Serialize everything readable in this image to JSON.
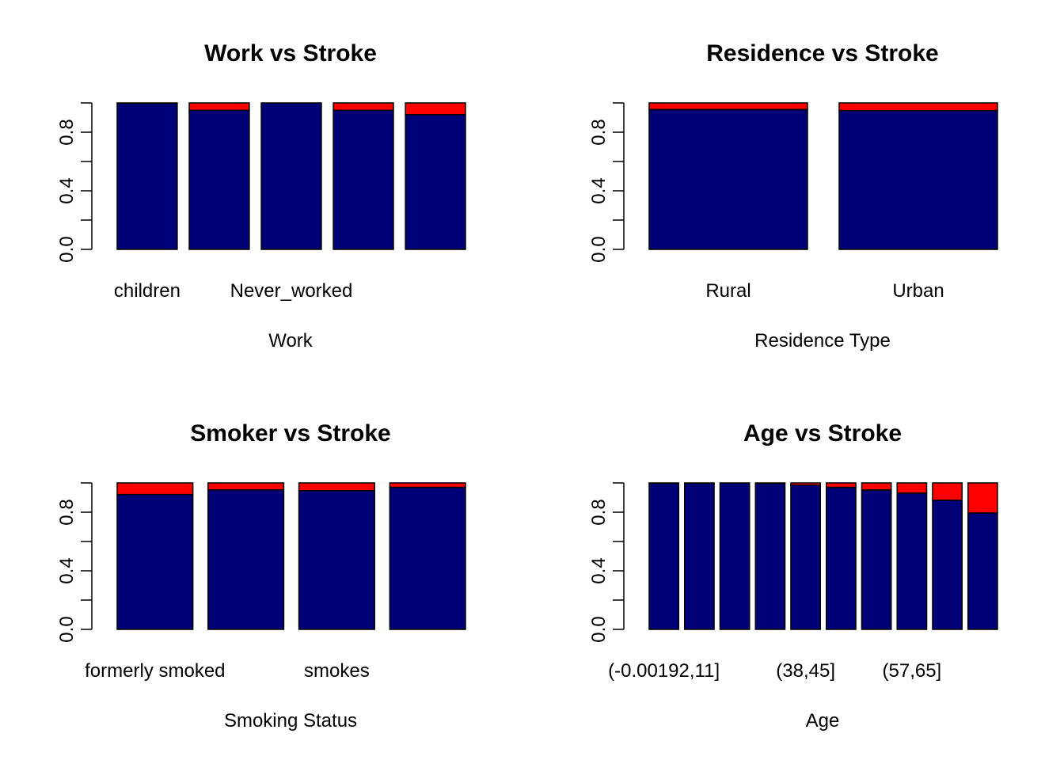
{
  "colors": {
    "no_stroke": "#000077",
    "stroke": "#ff0000"
  },
  "chart_data": [
    {
      "type": "bar",
      "stacked": true,
      "title": "Work vs Stroke",
      "xlabel": "Work",
      "ylabel": "",
      "ylim": [
        0,
        1
      ],
      "yticks": [
        0.0,
        0.2,
        0.4,
        0.6,
        0.8,
        1.0
      ],
      "ytick_labels": [
        "0.0",
        "",
        "0.4",
        "",
        "0.8",
        ""
      ],
      "categories": [
        "children",
        "",
        "Never_worked",
        "",
        ""
      ],
      "series": [
        {
          "values": [
            0.998,
            0.95,
            1.0,
            0.95,
            0.92
          ]
        },
        {
          "values": [
            0.002,
            0.05,
            0.0,
            0.05,
            0.08
          ]
        }
      ]
    },
    {
      "type": "bar",
      "stacked": true,
      "title": "Residence vs Stroke",
      "xlabel": "Residence Type",
      "ylabel": "",
      "ylim": [
        0,
        1
      ],
      "yticks": [
        0.0,
        0.2,
        0.4,
        0.6,
        0.8,
        1.0
      ],
      "ytick_labels": [
        "0.0",
        "",
        "0.4",
        "",
        "0.8",
        ""
      ],
      "categories": [
        "Rural",
        "Urban"
      ],
      "series": [
        {
          "values": [
            0.955,
            0.948
          ]
        },
        {
          "values": [
            0.045,
            0.052
          ]
        }
      ]
    },
    {
      "type": "bar",
      "stacked": true,
      "title": "Smoker vs Stroke",
      "xlabel": "Smoking Status",
      "ylabel": "",
      "ylim": [
        0,
        1
      ],
      "yticks": [
        0.0,
        0.2,
        0.4,
        0.6,
        0.8,
        1.0
      ],
      "ytick_labels": [
        "0.0",
        "",
        "0.4",
        "",
        "0.8",
        ""
      ],
      "categories": [
        "formerly smoked",
        "",
        "smokes",
        ""
      ],
      "series": [
        {
          "values": [
            0.921,
            0.953,
            0.947,
            0.97
          ]
        },
        {
          "values": [
            0.079,
            0.047,
            0.053,
            0.03
          ]
        }
      ]
    },
    {
      "type": "bar",
      "stacked": true,
      "title": "Age vs Stroke",
      "xlabel": "Age",
      "ylabel": "",
      "ylim": [
        0,
        1
      ],
      "yticks": [
        0.0,
        0.2,
        0.4,
        0.6,
        0.8,
        1.0
      ],
      "ytick_labels": [
        "0.0",
        "",
        "0.4",
        "",
        "0.8",
        ""
      ],
      "categories": [
        "(-0.00192,11]",
        "",
        "",
        "",
        "(38,45]",
        "",
        "",
        "(57,65]",
        "",
        ""
      ],
      "series": [
        {
          "values": [
            0.998,
            0.998,
            1.0,
            0.997,
            0.985,
            0.97,
            0.952,
            0.93,
            0.882,
            0.795
          ]
        },
        {
          "values": [
            0.002,
            0.002,
            0.0,
            0.003,
            0.015,
            0.03,
            0.048,
            0.07,
            0.118,
            0.205
          ]
        }
      ]
    }
  ]
}
